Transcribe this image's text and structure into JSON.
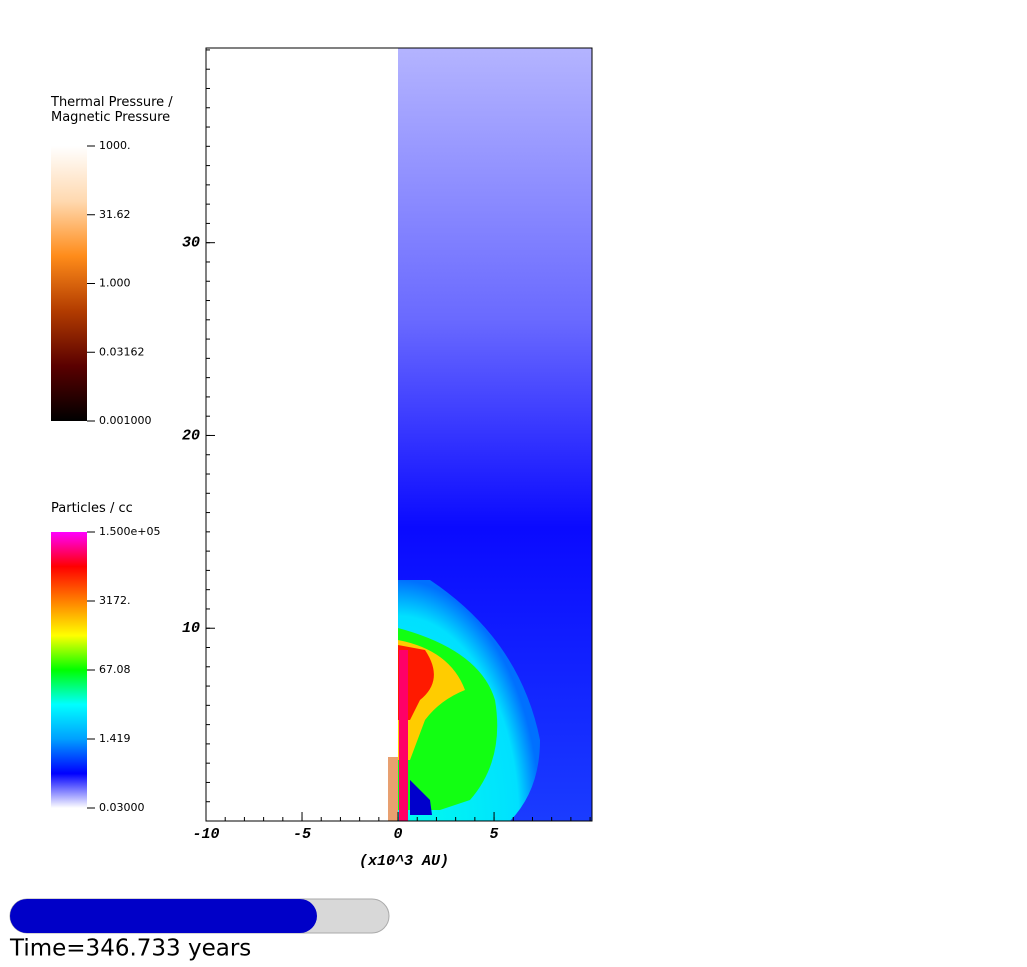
{
  "chart_data": {
    "type": "field",
    "xlabel": "(x10^3 AU)",
    "xlim": [
      -10,
      10.1
    ],
    "xticks": [
      -10,
      -5,
      0,
      5
    ],
    "xminor": 1,
    "ylim": [
      0,
      40.1
    ],
    "yticks": [
      10,
      20,
      30
    ],
    "yminor": 1,
    "colorbars": [
      {
        "title": "Thermal Pressure /\nMagnetic Pressure",
        "log": true,
        "clim": [
          0.001,
          1000
        ],
        "colors": [
          "#000000",
          "#5a0000",
          "#b23c00",
          "#ff8c1a",
          "#ffd9b0",
          "#ffffff"
        ],
        "ticks": [
          {
            "value": 1000,
            "label": "1000."
          },
          31.62,
          {
            "value": 1,
            "label": "1.000"
          },
          0.03162,
          {
            "value": 0.001,
            "label": "0.001000"
          }
        ]
      },
      {
        "title": "Particles / cc",
        "log": true,
        "clim": [
          0.03,
          150000
        ],
        "colors": [
          "#ffffff",
          "#0000ff",
          "#00a0ff",
          "#00ffff",
          "#00ff00",
          "#ffff00",
          "#ff8000",
          "#ff0000",
          "#ff00ff"
        ],
        "ticks": [
          {
            "value": 150000,
            "label": "1.500e+05"
          },
          {
            "value": 3172,
            "label": "3172."
          },
          67.08,
          1.419,
          {
            "value": 0.03,
            "label": "0.03000"
          }
        ]
      }
    ],
    "time_label": "Time=346.733 years",
    "progress": 0.81
  }
}
